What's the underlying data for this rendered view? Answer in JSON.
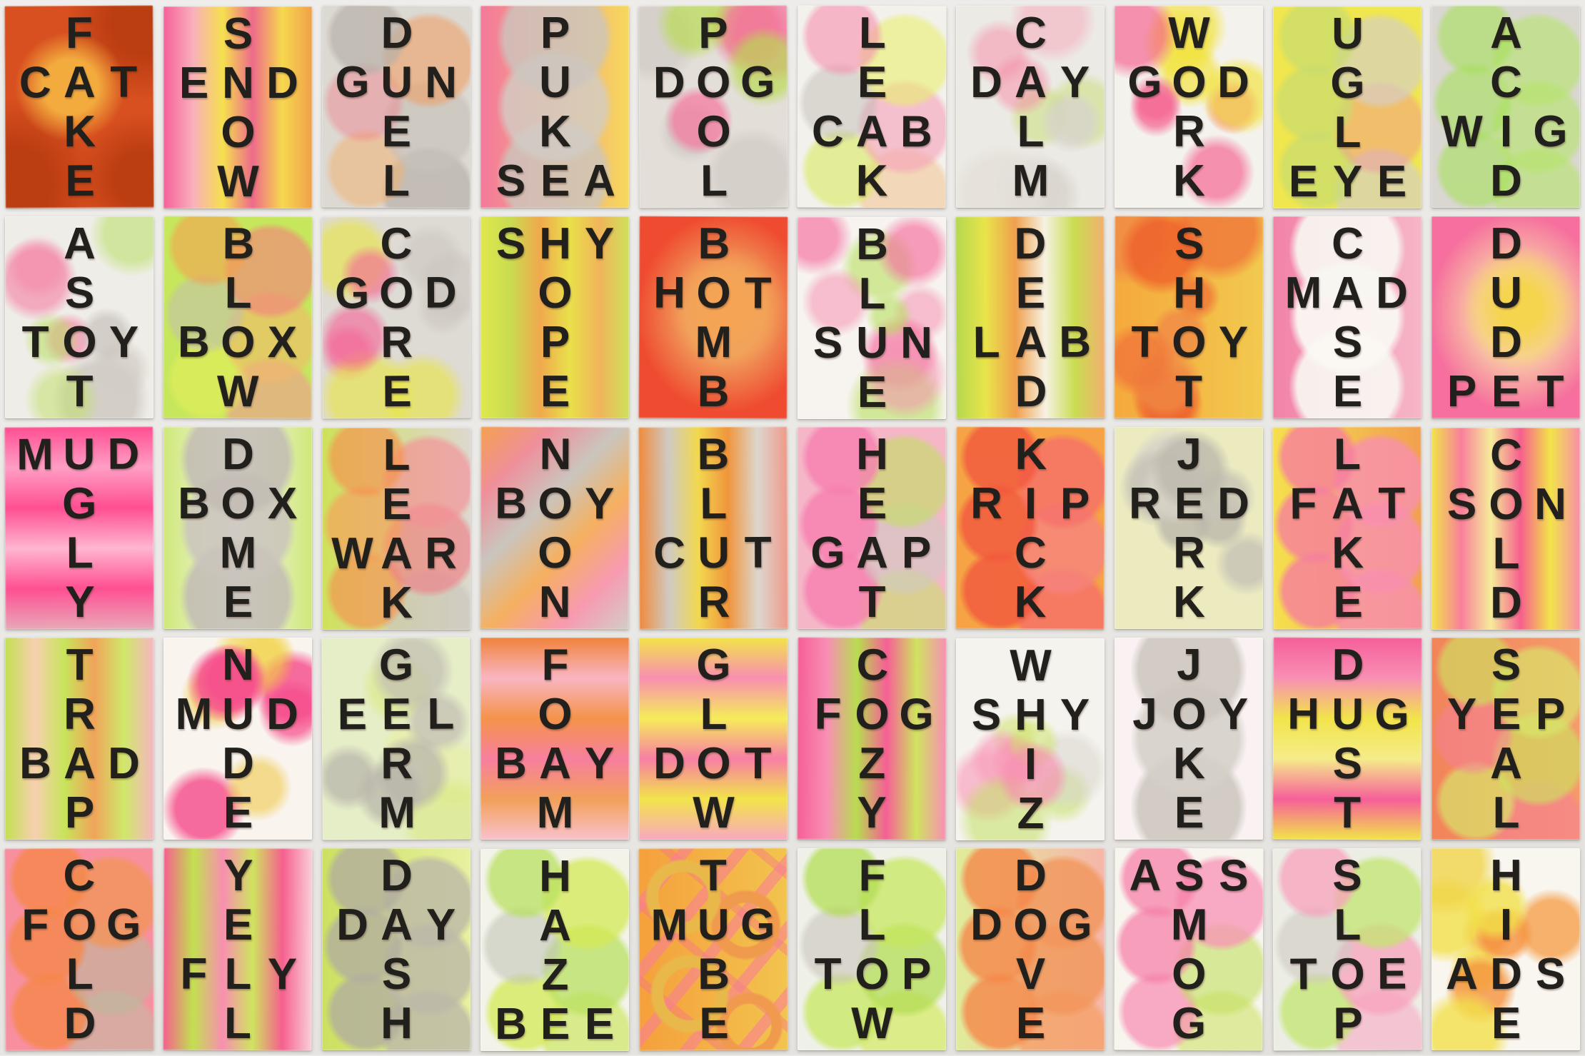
{
  "artwork": {
    "description": "Wall grid of 50 fluorescent spray-painted cards, each with a vertical word crossing a horizontal three-letter word at a shared letter",
    "wall_color": "#e9e8e5",
    "letter_color": "#22201c",
    "grid": {
      "rows": 5,
      "cols": 10
    },
    "shared_letter_index_in_horizontal": 1,
    "cards": [
      {
        "vertical": "FAKE",
        "horizontal": "CAT",
        "cross_row": 1,
        "bg": {
          "base": "#d85020",
          "pattern": "burst",
          "colors": [
            "#f3ab3e",
            "#bb3d12"
          ]
        }
      },
      {
        "vertical": "SNOW",
        "horizontal": "END",
        "cross_row": 1,
        "bg": {
          "base": "#f5e04e",
          "pattern": "stripes-v",
          "colors": [
            "#f6609a",
            "#f9b0bc",
            "#f5e04e",
            "#ee6a8c",
            "#f6d84e",
            "#f0a04a"
          ]
        }
      },
      {
        "vertical": "DUEL",
        "horizontal": "GUN",
        "cross_row": 1,
        "bg": {
          "base": "#dcd8d2",
          "pattern": "circles",
          "colors": [
            "#b5afa7aa",
            "#f09a5a88",
            "#ef828c77",
            "#c7c1b9aa",
            "#f3b37088",
            "#b5afa7aa"
          ]
        }
      },
      {
        "vertical": "PUKE",
        "horizontal": "SEA",
        "cross_row": 3,
        "bg": {
          "base": [
            "#f4799c",
            "#f6d85c"
          ],
          "pattern": "circles3",
          "colors": [
            "#cbc6bfcc",
            "#d2cdc6cc",
            "#cbc6bfcc"
          ]
        }
      },
      {
        "vertical": "POOL",
        "horizontal": "DOG",
        "cross_row": 1,
        "bg": {
          "base": "#e3ded8",
          "pattern": "dots",
          "colors": [
            "#f66f9baa",
            "#b8dc4faa",
            "#c9c4bd88"
          ]
        }
      },
      {
        "vertical": "LEAK",
        "horizontal": "CAB",
        "cross_row": 2,
        "bg": {
          "base": "#f3f1ec",
          "pattern": "circles",
          "colors": [
            "#f68fae99",
            "#e8ef6d99",
            "#bdb8b077",
            "#f6a0b899",
            "#d8ea5e99",
            "#f0b06a66"
          ]
        }
      },
      {
        "vertical": "CALM",
        "horizontal": "DAY",
        "cross_row": 1,
        "bg": {
          "base": "#eceae4",
          "pattern": "dots",
          "colors": [
            "#d8d4cdcc",
            "#f58fa788",
            "#c4dc6a77",
            "#e4e0d9cc",
            "#f5a0b477"
          ]
        }
      },
      {
        "vertical": "WORK",
        "horizontal": "GOD",
        "cross_row": 1,
        "bg": {
          "base": "#f4f2ec",
          "pattern": "dots",
          "colors": [
            "#f55f8faa",
            "#f2e33caa"
          ]
        }
      },
      {
        "vertical": "UGLY",
        "horizontal": "EYE",
        "cross_row": 3,
        "bg": {
          "base": "#f0e64e",
          "pattern": "circles",
          "colors": [
            "#c9dc6fbb",
            "#d4d0c8aa",
            "#c9dc6fbb",
            "#f2849a66",
            "#c9dc6fbb",
            "#d4d0c8aa"
          ]
        }
      },
      {
        "vertical": "ACID",
        "horizontal": "WIG",
        "cross_row": 2,
        "bg": {
          "base": "#dad7d2",
          "pattern": "circles",
          "colors": [
            "#a6e05999",
            "#b5e46a99"
          ]
        }
      },
      {
        "vertical": "ASOT",
        "horizontal": "TOY",
        "cross_row": 2,
        "bg": {
          "base": "#efede7",
          "pattern": "dots",
          "colors": [
            "#c9c4bdbb",
            "#b5e05f88",
            "#f56f9a88",
            "#d2cdc6bb",
            "#c2e06a88",
            "#f58fae77"
          ]
        }
      },
      {
        "vertical": "BLOW",
        "horizontal": "BOX",
        "cross_row": 2,
        "bg": {
          "base": "#c6e75c",
          "pattern": "circles",
          "colors": [
            "#f5a04e99",
            "#f57d7d99",
            "#c2bcb488",
            "#f2b86a99",
            "#e8ef5a88",
            "#f58f9a88"
          ]
        }
      },
      {
        "vertical": "CORE",
        "horizontal": "GOD",
        "cross_row": 1,
        "bg": {
          "base": "#dedad4",
          "pattern": "dots",
          "colors": [
            "#f5629699",
            "#e9e63e99",
            "#c9c4bd88"
          ]
        }
      },
      {
        "vertical": "HOPE",
        "horizontal": "SHY",
        "cross_row": 0,
        "bg": {
          "base": "#e9e04a",
          "pattern": "stripes-v",
          "colors": [
            "#dfe84e",
            "#c9dc50",
            "#f0a94e",
            "#e9e04a",
            "#f0b45a",
            "#cfe05a"
          ]
        }
      },
      {
        "vertical": "BOMB",
        "horizontal": "HOT",
        "cross_row": 1,
        "bg": {
          "base": "#ef4b30",
          "pattern": "glow",
          "colors": [
            "#f5a455",
            "#f0b86acc"
          ]
        }
      },
      {
        "vertical": "BLUE",
        "horizontal": "SUN",
        "cross_row": 2,
        "bg": {
          "base": "#f7f3ef",
          "pattern": "dots",
          "colors": [
            "#f56fa0aa",
            "#f58fb088",
            "#b8e06099"
          ]
        }
      },
      {
        "vertical": "DEAD",
        "horizontal": "LAB",
        "cross_row": 2,
        "bg": {
          "base": "#dfe6a0",
          "pattern": "stripes-v",
          "colors": [
            "#b5d84e",
            "#e9e44a",
            "#f0a04e",
            "#f6f2e2",
            "#c9dc50",
            "#f2b070"
          ]
        }
      },
      {
        "vertical": "SHOT",
        "horizontal": "TOY",
        "cross_row": 2,
        "bg": {
          "base": [
            "#f5a93c",
            "#f2c94e"
          ],
          "pattern": "dots",
          "colors": [
            "#ee5f2acc",
            "#f0763acc",
            "#f08a46cc"
          ]
        }
      },
      {
        "vertical": "CASE",
        "horizontal": "MAD",
        "cross_row": 1,
        "bg": {
          "base": [
            "#f283a8",
            "#f6b6c8"
          ],
          "pattern": "circles3",
          "colors": [
            "#f8f6f1ee",
            "#fbf9f4ee",
            "#f8f6f1ee"
          ]
        }
      },
      {
        "vertical": "DUDE",
        "horizontal": "PET",
        "cross_row": 3,
        "bg": {
          "base": "#f66f9e",
          "pattern": "glow",
          "colors": [
            "#f5d44e",
            "#f9e9a8cc"
          ]
        }
      },
      {
        "vertical": "UGLY",
        "horizontal": "MUD",
        "cross_row": 0,
        "bg": {
          "base": "#ff5f9b",
          "pattern": "stripes-h",
          "colors": [
            "#ff4f92",
            "#ff9ec4",
            "#ff4f92",
            "#ffb6d0",
            "#ff4f92",
            "#e8a8b8"
          ]
        }
      },
      {
        "vertical": "DOME",
        "horizontal": "BOX",
        "cross_row": 1,
        "bg": {
          "base": [
            "#cfe87a",
            "#f6f7f0",
            "#cfe87a"
          ],
          "pattern": "circles3",
          "colors": [
            "#c2bcb4dd",
            "#cac4bcdd",
            "#c2bcb4dd"
          ]
        }
      },
      {
        "vertical": "LEAK",
        "horizontal": "WAR",
        "cross_row": 2,
        "bg": {
          "base": [
            "#cfe05a",
            "#dcd8cf"
          ],
          "pattern": "circles",
          "colors": [
            "#f5934eaa",
            "#f58f96aa",
            "#f5a05aaa",
            "#ef7f88aa",
            "#f5934eaa",
            "#c9c4bd99"
          ]
        }
      },
      {
        "vertical": "NOON",
        "horizontal": "BOY",
        "cross_row": 1,
        "bg": {
          "base": "#f0b284",
          "pattern": "diag",
          "colors": [
            "#f5a050",
            "#ef8f9a",
            "#cac5be",
            "#f5b060",
            "#f79ab0",
            "#d2cdc6"
          ]
        }
      },
      {
        "vertical": "BLUR",
        "horizontal": "CUT",
        "cross_row": 2,
        "bg": {
          "base": "#e8e0c8",
          "pattern": "stripes-v",
          "colors": [
            "#f08a3c",
            "#cfcac2",
            "#f2d84e",
            "#f0953c",
            "#dcd7cf",
            "#ef9a8a"
          ]
        }
      },
      {
        "vertical": "HEAT",
        "horizontal": "GAP",
        "cross_row": 2,
        "bg": {
          "base": "#f5b6c8",
          "pattern": "circles",
          "colors": [
            "#f77fb0cc",
            "#c2e05f99",
            "#f77fb0cc",
            "#cfc9c299",
            "#f77fb0cc",
            "#c9e06a99"
          ]
        }
      },
      {
        "vertical": "KICK",
        "horizontal": "RIP",
        "cross_row": 1,
        "bg": {
          "base": "#f5a344",
          "pattern": "circles",
          "colors": [
            "#f2583ecc",
            "#f6706acc",
            "#f2583ecc",
            "#f6837dcc"
          ]
        }
      },
      {
        "vertical": "JERK",
        "horizontal": "RED",
        "cross_row": 1,
        "bg": {
          "base": "#ecebc0",
          "pattern": "dots",
          "colors": [
            "#bcb8accc",
            "#c6c2b6cc",
            "#d8d4c8cc"
          ]
        }
      },
      {
        "vertical": "LAKE",
        "horizontal": "FAT",
        "cross_row": 1,
        "bg": {
          "base": [
            "#f5e04e",
            "#f2a04e"
          ],
          "pattern": "circles",
          "colors": [
            "#f67f9ecc",
            "#f88fb0cc"
          ]
        }
      },
      {
        "vertical": "COLD",
        "horizontal": "SON",
        "cross_row": 1,
        "bg": {
          "base": "#f0e44e",
          "pattern": "stripes-v",
          "colors": [
            "#f2e44a",
            "#f87f9a",
            "#f5ec9a",
            "#f65f8e",
            "#f2e44a",
            "#f88fa8"
          ]
        }
      },
      {
        "vertical": "TRAP",
        "horizontal": "BAD",
        "cross_row": 2,
        "bg": {
          "base": "#f6ece0",
          "pattern": "stripes-v",
          "colors": [
            "#c2e050",
            "#f6d0b0",
            "#c8e45a",
            "#f0a45a",
            "#cfe86a",
            "#f6b6c0"
          ]
        }
      },
      {
        "vertical": "NUDE",
        "horizontal": "MUD",
        "cross_row": 1,
        "bg": {
          "base": "#f9f4ee",
          "pattern": "dots",
          "colors": [
            "#f6498acc",
            "#f65f96cc",
            "#f2d44a99",
            "#f0c94a99"
          ]
        }
      },
      {
        "vertical": "GERM",
        "horizontal": "EEL",
        "cross_row": 1,
        "bg": {
          "base": "#e6eec8",
          "pattern": "dots",
          "colors": [
            "#b8b4aabb",
            "#c2beb2bb",
            "#d8e87a88",
            "#e8ef9a88"
          ]
        }
      },
      {
        "vertical": "FOAM",
        "horizontal": "BAY",
        "cross_row": 2,
        "bg": {
          "base": "#f6ded2",
          "pattern": "stripes-h",
          "colors": [
            "#f0823c",
            "#f9b6c2",
            "#f5934a",
            "#f77f9e",
            "#f2a05a",
            "#f9c2cc"
          ]
        }
      },
      {
        "vertical": "GLOW",
        "horizontal": "DOT",
        "cross_row": 2,
        "bg": {
          "base": "#f5ec9e",
          "pattern": "stripes-h",
          "colors": [
            "#f2e44a",
            "#f88fb0",
            "#f5ec5a",
            "#f77fa4",
            "#f2e44a",
            "#f9a8c0"
          ]
        }
      },
      {
        "vertical": "COZY",
        "horizontal": "FOG",
        "cross_row": 1,
        "bg": {
          "base": "#f77fa6",
          "pattern": "stripes-v",
          "colors": [
            "#f65f96",
            "#f88fb4",
            "#b8dc50",
            "#f65f96",
            "#cfe45f",
            "#f88fb4"
          ]
        }
      },
      {
        "vertical": "WHIZ",
        "horizontal": "SHY",
        "cross_row": 1,
        "bg": {
          "base": "#f5f3ee",
          "pattern": "dots",
          "colors": [
            "#f88fb0aa",
            "#c2e06088",
            "#f8a0bcaa",
            "#cfe46a88",
            "#d8d4cd88"
          ]
        }
      },
      {
        "vertical": "JOKE",
        "horizontal": "JOY",
        "cross_row": 1,
        "bg": {
          "base": "#f9f1f2",
          "pattern": "circles3",
          "colors": [
            "#ccc6bedd",
            "#d5d0c8dd",
            "#ccc6bedd"
          ]
        }
      },
      {
        "vertical": "DUST",
        "horizontal": "HUG",
        "cross_row": 1,
        "bg": {
          "base": "#f2e44e",
          "pattern": "stripes-h",
          "colors": [
            "#f65f9a",
            "#f88fb4",
            "#f2e44a",
            "#f5ec8a",
            "#f65f9a",
            "#f2e44a"
          ]
        }
      },
      {
        "vertical": "SEAL",
        "horizontal": "YEP",
        "cross_row": 1,
        "bg": {
          "base": [
            "#f2845a",
            "#f59a6a"
          ],
          "pattern": "circles",
          "colors": [
            "#cfe05faa",
            "#d8e86aaa",
            "#f67f9a88"
          ]
        }
      },
      {
        "vertical": "COLD",
        "horizontal": "FOG",
        "cross_row": 1,
        "bg": {
          "base": "#f88f9e",
          "pattern": "circles",
          "colors": [
            "#f5874acc",
            "#f2955acc",
            "#f5874acc",
            "#bcb89a99",
            "#f5874acc",
            "#c2bca399"
          ]
        }
      },
      {
        "vertical": "YELL",
        "horizontal": "FLY",
        "cross_row": 2,
        "bg": {
          "base": "#f6b6c4",
          "pattern": "stripes-v",
          "colors": [
            "#f65f8e",
            "#c2e050",
            "#f88fb0",
            "#cfe45f",
            "#f65f8e",
            "#f9d0d8"
          ]
        }
      },
      {
        "vertical": "DASH",
        "horizontal": "DAY",
        "cross_row": 1,
        "bg": {
          "base": [
            "#cce060",
            "#e8f0a0"
          ],
          "pattern": "circles",
          "colors": [
            "#b2ae9ecc",
            "#bcb8a8cc"
          ]
        }
      },
      {
        "vertical": "HAZE",
        "horizontal": "BEE",
        "cross_row": 3,
        "bg": {
          "base": "#f3f3ea",
          "pattern": "circles",
          "colors": [
            "#b8e05fbb",
            "#d4ea52bb",
            "#c2c6b899",
            "#b8e05fbb",
            "#d4ea52bb",
            "#cfe86abb"
          ]
        }
      },
      {
        "vertical": "TUBE",
        "horizontal": "MUG",
        "cross_row": 1,
        "bg": {
          "base": [
            "#f5a03c",
            "#f2c44e"
          ],
          "pattern": "rings",
          "colors": [
            "#e8b84a",
            "#f87f96",
            "#f09a4e",
            "#f66f8e"
          ]
        }
      },
      {
        "vertical": "FLOW",
        "horizontal": "TOP",
        "cross_row": 2,
        "bg": {
          "base": "#eff1e8",
          "pattern": "circles",
          "colors": [
            "#b2dc52bb",
            "#c6e75cbb",
            "#cac4bc99",
            "#b2dc52bb",
            "#c6e75cbb",
            "#d4ea66bb"
          ]
        }
      },
      {
        "vertical": "DOVE",
        "horizontal": "DOG",
        "cross_row": 1,
        "bg": {
          "base": [
            "#e0ec9a",
            "#f6b6a8"
          ],
          "pattern": "circles",
          "colors": [
            "#f5884acc",
            "#f2955acc",
            "#f5884acc",
            "#f2955acc",
            "#f5884acc",
            "#f6a06acc"
          ]
        }
      },
      {
        "vertical": "SMOG",
        "horizontal": "ASS",
        "cross_row": 0,
        "bg": {
          "base": "#f8f4ee",
          "pattern": "circles",
          "colors": [
            "#f67fa8bb",
            "#f88fb4bb",
            "#f67fa8bb",
            "#c2e06099",
            "#f88fb4bb",
            "#cfe46a99"
          ]
        }
      },
      {
        "vertical": "SLOP",
        "horizontal": "TOE",
        "cross_row": 2,
        "bg": {
          "base": "#eceee6",
          "pattern": "circles",
          "colors": [
            "#f8a0bcbb",
            "#c2e66cbb",
            "#cfc9c199",
            "#f8a0bcbb",
            "#c2e66cbb",
            "#f6b6ccbb"
          ]
        }
      },
      {
        "vertical": "HIDE",
        "horizontal": "ADS",
        "cross_row": 2,
        "bg": {
          "base": "#f9f6ef",
          "pattern": "dots",
          "colors": [
            "#f2e04acc",
            "#f5923ccc",
            "#f2e04acc",
            "#f5a04ccc",
            "#f0d44acc"
          ]
        }
      }
    ]
  }
}
